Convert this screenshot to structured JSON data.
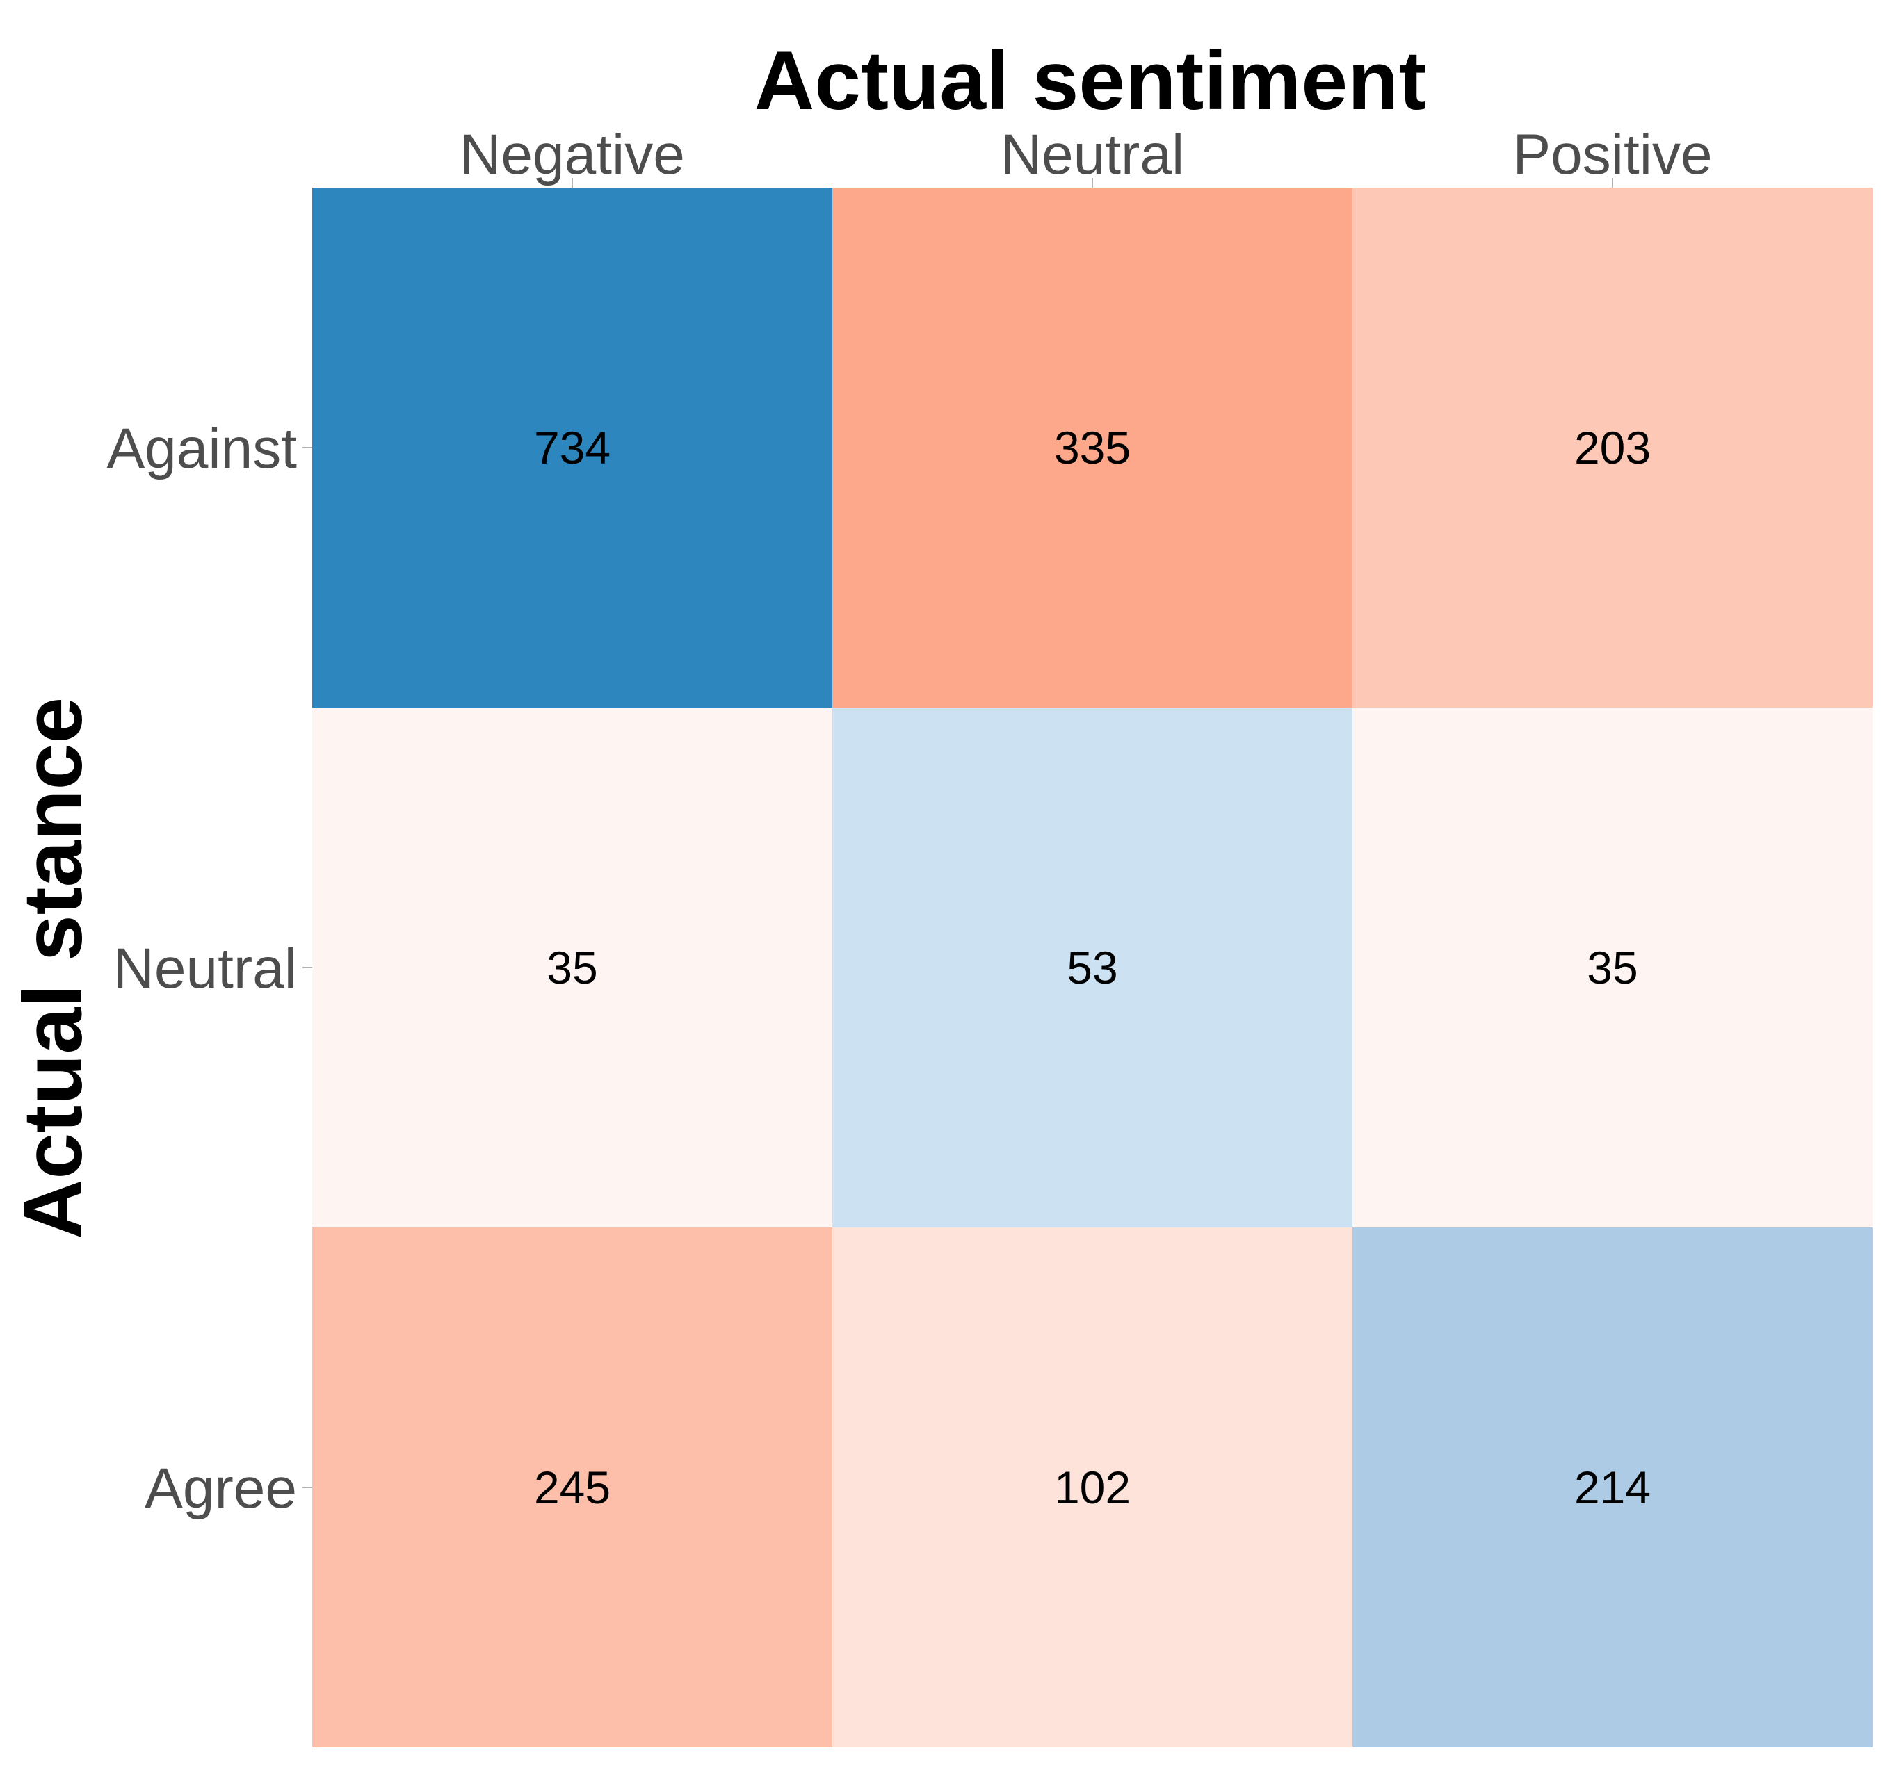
{
  "chart_data": {
    "type": "heatmap",
    "title": "",
    "xlabel": "Actual sentiment",
    "ylabel": "Actual stance",
    "x_categories": [
      "Negative",
      "Neutral",
      "Positive"
    ],
    "y_categories": [
      "Against",
      "Neutral",
      "Agree"
    ],
    "x_axis_position": "top",
    "grid": false,
    "legend": "none",
    "values": [
      [
        734,
        335,
        203
      ],
      [
        35,
        53,
        35
      ],
      [
        245,
        102,
        214
      ]
    ],
    "cell_colors": [
      [
        "#2e86bf",
        "#fda78b",
        "#fdc8b5"
      ],
      [
        "#fef4f1",
        "#cce2f2",
        "#fef4f1"
      ],
      [
        "#fdbfa9",
        "#fee3da",
        "#aecbe5"
      ]
    ]
  }
}
